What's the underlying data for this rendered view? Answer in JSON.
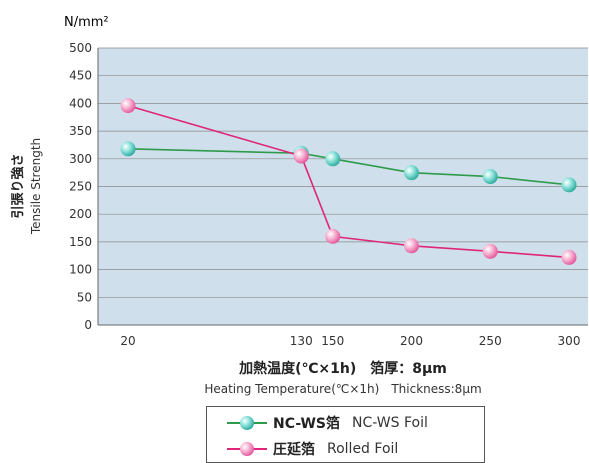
{
  "chart_data": {
    "type": "line",
    "unit_label": "N/mm²",
    "ylabel_jp": "引張り強さ",
    "ylabel_en": "Tensile Strength",
    "xlabel_jp": "加熱温度(℃×1h)　箔厚：8μm",
    "xlabel_en": "Heating Temperature(℃×1h)　Thickness:8μm",
    "x": [
      20,
      130,
      150,
      200,
      250,
      300
    ],
    "x_tick_labels": [
      "20",
      "130",
      "150",
      "200",
      "250",
      "300"
    ],
    "ylim": [
      0,
      500
    ],
    "y_ticks": [
      0,
      50,
      100,
      150,
      200,
      250,
      300,
      350,
      400,
      450,
      500
    ],
    "grid": true,
    "series": [
      {
        "name_jp": "NC-WS箔",
        "name_en": "NC-WS Foil",
        "color": "#2e9a4a",
        "marker": "#5fd0c8",
        "values": [
          318,
          310,
          300,
          275,
          268,
          253
        ]
      },
      {
        "name_jp": "圧延箔",
        "name_en": "Rolled Foil",
        "color": "#e0267a",
        "marker": "#f49ac4",
        "values": [
          396,
          305,
          160,
          143,
          133,
          122
        ]
      }
    ]
  }
}
